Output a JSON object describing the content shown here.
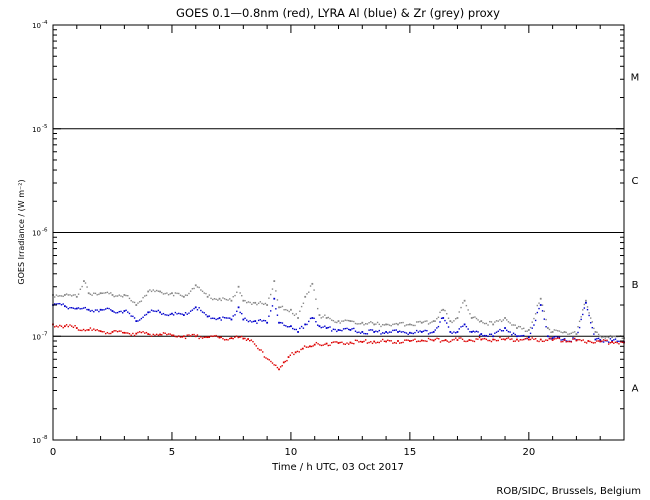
{
  "chart_data": {
    "type": "scatter",
    "title": "GOES 0.1—0.8nm (red), LYRA Al (blue) & Zr (grey) proxy",
    "xlabel": "Time / h UTC, 03 Oct 2017",
    "ylabel": "GOES Irradiance / (W m⁻²)",
    "credit": "ROB/SIDC, Brussels, Belgium",
    "xlim": [
      0,
      24
    ],
    "ylim": [
      1e-08,
      0.0001
    ],
    "yscale": "log",
    "x_ticks": [
      0,
      5,
      10,
      15,
      20
    ],
    "y_ticks": [
      {
        "value": 1e-08,
        "label": "10",
        "exp": "-8"
      },
      {
        "value": 1e-07,
        "label": "10",
        "exp": "-7"
      },
      {
        "value": 1e-06,
        "label": "10",
        "exp": "-6"
      },
      {
        "value": 1e-05,
        "label": "10",
        "exp": "-5"
      },
      {
        "value": 0.0001,
        "label": "10",
        "exp": "-4"
      }
    ],
    "flare_class_lines": [
      1e-07,
      1e-06,
      1e-05
    ],
    "flare_classes": [
      {
        "label": "A",
        "value": 3.2e-08
      },
      {
        "label": "B",
        "value": 3.2e-07
      },
      {
        "label": "C",
        "value": 3.2e-06
      },
      {
        "label": "M",
        "value": 3.2e-05
      }
    ],
    "series": [
      {
        "name": "Zr (grey) proxy",
        "color": "#888888",
        "x": [
          0,
          0.5,
          1,
          1.3,
          1.5,
          2,
          2.5,
          3,
          3.5,
          4,
          4.5,
          5,
          5.5,
          6,
          6.5,
          7,
          7.5,
          7.8,
          8,
          8.5,
          9,
          9.3,
          9.5,
          10,
          10.3,
          10.6,
          10.9,
          11.2,
          11.5,
          12,
          12.5,
          13,
          13.5,
          14,
          14.5,
          15,
          15.5,
          16,
          16.4,
          16.7,
          17,
          17.3,
          17.6,
          18,
          18.5,
          19,
          19.5,
          20,
          20.5,
          20.8,
          21,
          21.5,
          22,
          22.4,
          22.8,
          23,
          23.5,
          24
        ],
        "y": [
          2.5e-07,
          2.5e-07,
          2.4e-07,
          3.4e-07,
          2.6e-07,
          2.6e-07,
          2.5e-07,
          2.5e-07,
          2e-07,
          2.7e-07,
          2.7e-07,
          2.6e-07,
          2.4e-07,
          3.1e-07,
          2.4e-07,
          2.3e-07,
          2.2e-07,
          3e-07,
          2.2e-07,
          2.1e-07,
          2e-07,
          3.4e-07,
          1.9e-07,
          1.8e-07,
          1.5e-07,
          2.4e-07,
          3.2e-07,
          1.6e-07,
          1.5e-07,
          1.4e-07,
          1.4e-07,
          1.35e-07,
          1.3e-07,
          1.3e-07,
          1.3e-07,
          1.3e-07,
          1.35e-07,
          1.4e-07,
          1.8e-07,
          1.4e-07,
          1.5e-07,
          2.2e-07,
          1.5e-07,
          1.4e-07,
          1.3e-07,
          1.5e-07,
          1.2e-07,
          1.15e-07,
          2.3e-07,
          1.2e-07,
          1.1e-07,
          1.1e-07,
          1.05e-07,
          2.2e-07,
          1.1e-07,
          1e-07,
          9.8e-08,
          9.6e-08
        ]
      },
      {
        "name": "LYRA Al (blue)",
        "color": "#0000cc",
        "x": [
          0,
          0.5,
          1,
          1.5,
          2,
          2.5,
          3,
          3.5,
          4,
          4.5,
          5,
          5.5,
          6,
          6.5,
          7,
          7.5,
          7.8,
          8,
          8.5,
          9,
          9.3,
          9.5,
          10,
          10.3,
          10.6,
          10.9,
          11.2,
          11.5,
          12,
          12.5,
          13,
          13.5,
          14,
          14.5,
          15,
          15.5,
          16,
          16.4,
          16.7,
          17,
          17.3,
          17.6,
          18,
          18.5,
          19,
          19.5,
          20,
          20.5,
          20.8,
          21,
          21.5,
          22,
          22.4,
          22.8,
          23,
          23.5,
          24
        ],
        "y": [
          2e-07,
          1.95e-07,
          1.85e-07,
          1.8e-07,
          1.8e-07,
          1.75e-07,
          1.75e-07,
          1.4e-07,
          1.7e-07,
          1.7e-07,
          1.65e-07,
          1.6e-07,
          1.9e-07,
          1.55e-07,
          1.5e-07,
          1.45e-07,
          1.9e-07,
          1.45e-07,
          1.4e-07,
          1.35e-07,
          2.3e-07,
          1.35e-07,
          1.25e-07,
          1.1e-07,
          1.3e-07,
          1.5e-07,
          1.25e-07,
          1.2e-07,
          1.15e-07,
          1.15e-07,
          1.1e-07,
          1.1e-07,
          1.1e-07,
          1.1e-07,
          1.08e-07,
          1.1e-07,
          1.1e-07,
          1.5e-07,
          1.1e-07,
          1.1e-07,
          1.3e-07,
          1.1e-07,
          1.05e-07,
          1e-07,
          1.2e-07,
          1e-07,
          9.8e-08,
          2e-07,
          1e-07,
          9.6e-08,
          9.4e-08,
          9.2e-08,
          2.1e-07,
          9.3e-08,
          9.2e-08,
          9e-08,
          8.8e-08
        ]
      },
      {
        "name": "GOES 0.1—0.8nm (red)",
        "color": "#dd0000",
        "x": [
          0,
          0.5,
          1,
          1.5,
          2,
          2.5,
          3,
          3.5,
          4,
          4.5,
          5,
          5.5,
          6,
          6.5,
          7,
          7.5,
          8,
          8.2,
          9.5,
          9.7,
          9.9,
          10.2,
          10.5,
          10.8,
          11,
          11.5,
          12,
          12.5,
          13,
          13.5,
          14,
          14.5,
          15,
          15.5,
          16,
          16.5,
          17,
          17.5,
          18,
          18.5,
          19,
          19.5,
          20,
          20.5,
          21,
          21.5,
          22,
          22.5,
          23,
          23.5,
          24
        ],
        "y": [
          1.3e-07,
          1.25e-07,
          1.2e-07,
          1.15e-07,
          1.12e-07,
          1.1e-07,
          1.08e-07,
          1.06e-07,
          1.05e-07,
          1.04e-07,
          1.02e-07,
          1e-07,
          1e-07,
          9.8e-08,
          9.7e-08,
          9.6e-08,
          9.5e-08,
          9.4e-08,
          4.8e-08,
          5.6e-08,
          6.3e-08,
          7e-08,
          7.6e-08,
          8e-08,
          8.3e-08,
          8.5e-08,
          8.6e-08,
          8.7e-08,
          8.8e-08,
          8.9e-08,
          8.9e-08,
          9e-08,
          9e-08,
          9.1e-08,
          9.1e-08,
          9.2e-08,
          9.2e-08,
          9.2e-08,
          9.3e-08,
          9.3e-08,
          9.3e-08,
          9.3e-08,
          9.3e-08,
          9.3e-08,
          9.2e-08,
          9.2e-08,
          9.1e-08,
          9e-08,
          8.9e-08,
          8.8e-08,
          8.7e-08
        ]
      }
    ]
  }
}
